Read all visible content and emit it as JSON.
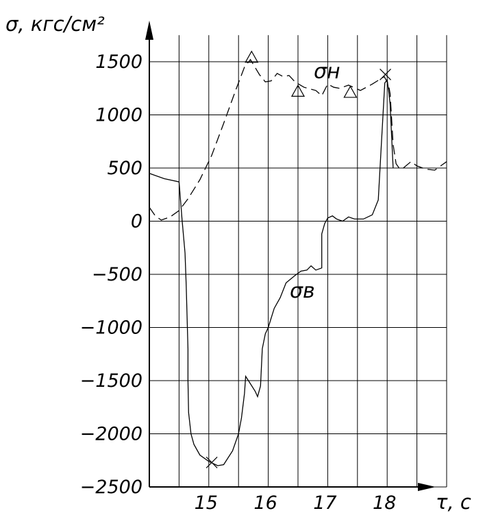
{
  "chart_data": {
    "type": "line",
    "xlabel": "τ, с",
    "ylabel": "σ, кгс/см²",
    "xlim": [
      14.0,
      19.0
    ],
    "ylim": [
      -2500,
      1900
    ],
    "x_ticks": [
      15,
      16,
      17,
      18
    ],
    "x_tick_labels": [
      "15",
      "16",
      "17",
      "18"
    ],
    "y_ticks": [
      1500,
      1000,
      500,
      0,
      -500,
      -1000,
      -1500,
      -2000,
      -2500
    ],
    "y_tick_labels": [
      "1500",
      "1000",
      "500",
      "0",
      "−500",
      "−1000",
      "−1500",
      "−2000",
      "−2500"
    ],
    "grid": true,
    "series": [
      {
        "name": "σн",
        "style": "dashed",
        "points": [
          [
            14.0,
            130
          ],
          [
            14.1,
            50
          ],
          [
            14.2,
            10
          ],
          [
            14.35,
            40
          ],
          [
            14.5,
            100
          ],
          [
            14.65,
            210
          ],
          [
            14.85,
            390
          ],
          [
            15.05,
            620
          ],
          [
            15.25,
            920
          ],
          [
            15.45,
            1230
          ],
          [
            15.6,
            1450
          ],
          [
            15.7,
            1520
          ],
          [
            15.85,
            1380
          ],
          [
            15.95,
            1310
          ],
          [
            16.05,
            1320
          ],
          [
            16.15,
            1390
          ],
          [
            16.25,
            1360
          ],
          [
            16.35,
            1370
          ],
          [
            16.45,
            1310
          ],
          [
            16.6,
            1260
          ],
          [
            16.8,
            1230
          ],
          [
            16.9,
            1180
          ],
          [
            17.0,
            1290
          ],
          [
            17.1,
            1260
          ],
          [
            17.2,
            1250
          ],
          [
            17.35,
            1280
          ],
          [
            17.55,
            1230
          ],
          [
            17.75,
            1290
          ],
          [
            17.95,
            1360
          ],
          [
            18.02,
            1290
          ],
          [
            18.05,
            1200
          ],
          [
            18.1,
            720
          ],
          [
            18.15,
            540
          ],
          [
            18.2,
            500
          ],
          [
            18.25,
            490
          ],
          [
            18.4,
            560
          ],
          [
            18.5,
            520
          ],
          [
            18.65,
            490
          ],
          [
            18.8,
            480
          ],
          [
            19.0,
            560
          ]
        ],
        "markers": [
          {
            "shape": "triangle",
            "x": 15.72,
            "y": 1540
          },
          {
            "shape": "triangle",
            "x": 16.5,
            "y": 1220
          },
          {
            "shape": "triangle",
            "x": 17.38,
            "y": 1210
          },
          {
            "shape": "cross",
            "x": 17.97,
            "y": 1380
          }
        ]
      },
      {
        "name": "σв",
        "style": "solid",
        "points": [
          [
            14.0,
            450
          ],
          [
            14.25,
            400
          ],
          [
            14.5,
            370
          ],
          [
            14.55,
            20
          ],
          [
            14.6,
            -300
          ],
          [
            14.62,
            -600
          ],
          [
            14.65,
            -1200
          ],
          [
            14.65,
            -1500
          ],
          [
            14.66,
            -1800
          ],
          [
            14.7,
            -2000
          ],
          [
            14.75,
            -2100
          ],
          [
            14.85,
            -2200
          ],
          [
            15.0,
            -2260
          ],
          [
            15.15,
            -2300
          ],
          [
            15.25,
            -2290
          ],
          [
            15.4,
            -2160
          ],
          [
            15.5,
            -2000
          ],
          [
            15.55,
            -1850
          ],
          [
            15.6,
            -1620
          ],
          [
            15.62,
            -1460
          ],
          [
            15.7,
            -1530
          ],
          [
            15.78,
            -1600
          ],
          [
            15.82,
            -1650
          ],
          [
            15.87,
            -1550
          ],
          [
            15.9,
            -1200
          ],
          [
            15.95,
            -1060
          ],
          [
            16.0,
            -1000
          ],
          [
            16.1,
            -820
          ],
          [
            16.2,
            -720
          ],
          [
            16.3,
            -580
          ],
          [
            16.45,
            -510
          ],
          [
            16.55,
            -470
          ],
          [
            16.65,
            -460
          ],
          [
            16.72,
            -420
          ],
          [
            16.8,
            -460
          ],
          [
            16.9,
            -440
          ],
          [
            16.9,
            -120
          ],
          [
            16.95,
            -20
          ],
          [
            17.0,
            30
          ],
          [
            17.08,
            50
          ],
          [
            17.15,
            20
          ],
          [
            17.25,
            0
          ],
          [
            17.35,
            40
          ],
          [
            17.45,
            20
          ],
          [
            17.6,
            20
          ],
          [
            17.75,
            60
          ],
          [
            17.85,
            200
          ],
          [
            17.9,
            700
          ],
          [
            17.93,
            1000
          ],
          [
            17.96,
            1300
          ],
          [
            18.0,
            1330
          ],
          [
            18.03,
            1200
          ],
          [
            18.05,
            1100
          ],
          [
            18.07,
            850
          ],
          [
            18.1,
            500
          ]
        ],
        "markers": [
          {
            "shape": "cross",
            "x": 15.05,
            "y": -2270
          }
        ]
      }
    ]
  }
}
